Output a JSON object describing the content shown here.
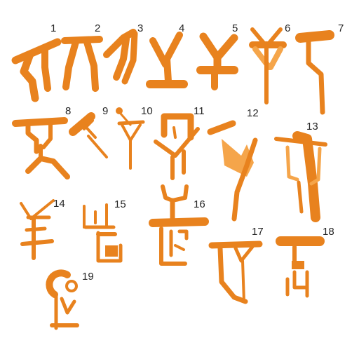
{
  "accent_color": "#E8821E",
  "accent_light_color": "#F5A54A",
  "labels": [
    "1",
    "2",
    "3",
    "4",
    "5",
    "6",
    "7",
    "8",
    "9",
    "10",
    "11",
    "12",
    "13",
    "14",
    "15",
    "16",
    "17",
    "18",
    "19"
  ]
}
